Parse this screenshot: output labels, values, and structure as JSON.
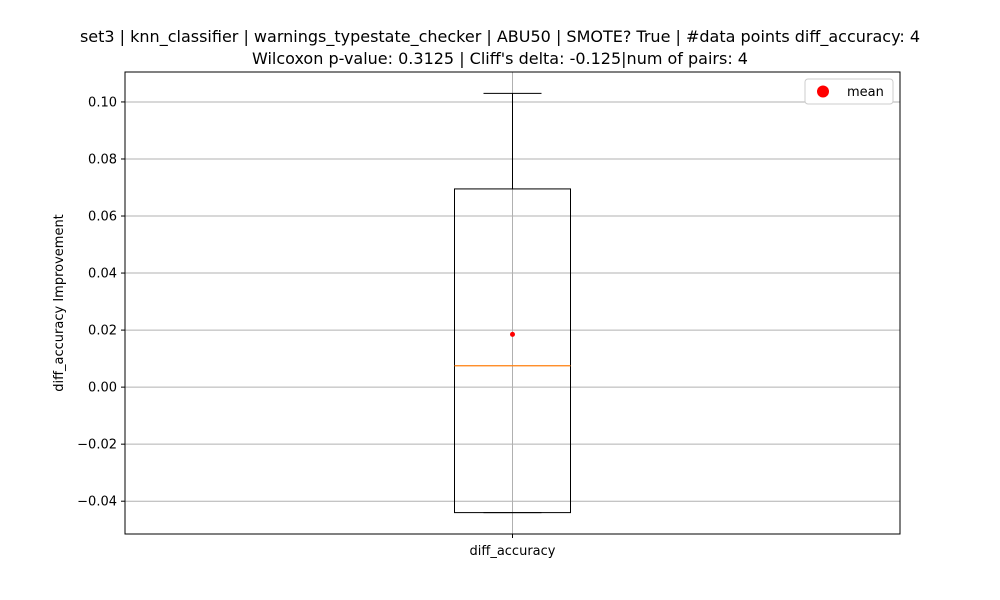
{
  "chart_data": {
    "type": "box",
    "title_line1": "set3 | knn_classifier | warnings_typestate_checker | ABU50 | SMOTE? True | #data points diff_accuracy: 4",
    "title_line2": "Wilcoxon p-value: 0.3125 | Cliff's delta: -0.125|num of pairs: 4",
    "ylabel": "diff_accuracy Improvement",
    "categories": [
      "diff_accuracy"
    ],
    "ylim": [
      -0.0515,
      0.1105
    ],
    "yticks": [
      -0.04,
      -0.02,
      0.0,
      0.02,
      0.04,
      0.06,
      0.08,
      0.1
    ],
    "ytick_labels": [
      "−0.04",
      "−0.02",
      "0.00",
      "0.02",
      "0.04",
      "0.06",
      "0.08",
      "0.10"
    ],
    "grid": true,
    "legend": {
      "placement": "top-right",
      "entries": [
        {
          "label": "mean",
          "color": "#ff0000",
          "marker": "circle"
        }
      ]
    },
    "boxes": [
      {
        "category": "diff_accuracy",
        "whisker_low": -0.044,
        "q1": -0.044,
        "median": 0.0075,
        "q3": 0.0695,
        "whisker_high": 0.103,
        "mean": 0.0185
      }
    ],
    "colors": {
      "box": "#000000",
      "median": "#ff7f0e",
      "mean": "#ff0000",
      "grid": "#b0b0b0"
    }
  }
}
